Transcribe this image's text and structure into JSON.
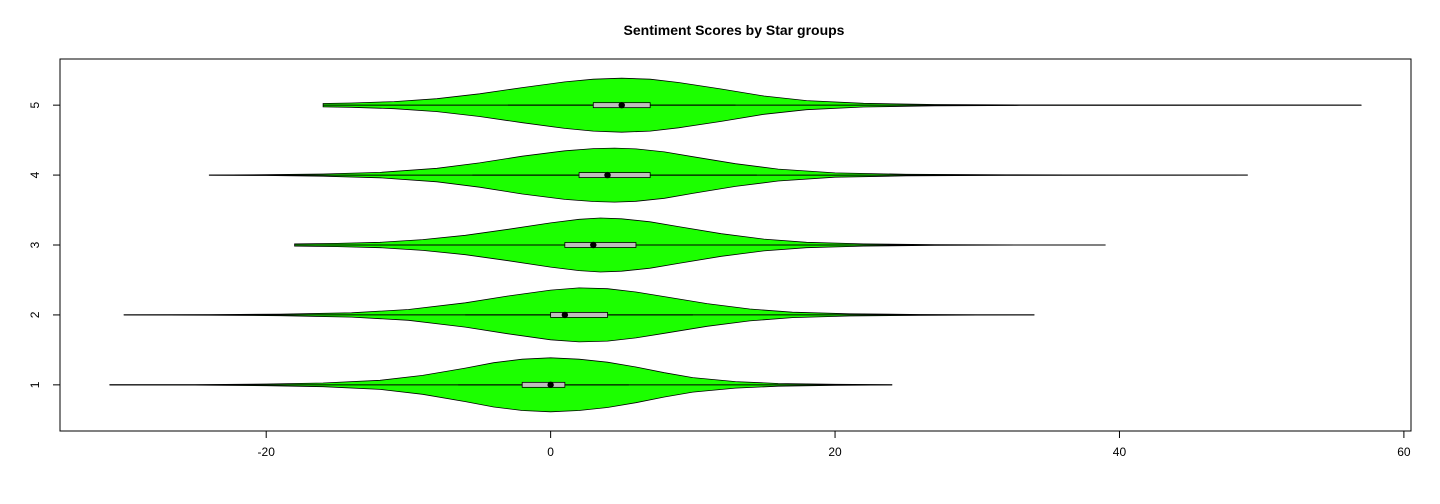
{
  "chart_data": {
    "type": "violin",
    "title": "Sentiment Scores by Star groups",
    "xlabel": "",
    "ylabel": "",
    "orientation": "horizontal",
    "xlim": [
      -34.5,
      60.5
    ],
    "x_ticks": [
      -20,
      0,
      20,
      40,
      60
    ],
    "y_ticks": [
      1,
      2,
      3,
      4,
      5
    ],
    "grid": false,
    "legend": "none",
    "colors": {
      "fill": "#1CFF00",
      "stroke": "#000000",
      "box": "#BEBEBE",
      "median": "#000000",
      "frame": "#000000"
    },
    "groups": [
      {
        "label": "1",
        "min": -31,
        "max": 24,
        "q1": -2,
        "median": 0,
        "q3": 1,
        "whisker_low": -6.5,
        "whisker_high": 5.5,
        "density": [
          [
            -31,
            0.004
          ],
          [
            -25,
            0.01
          ],
          [
            -20,
            0.03
          ],
          [
            -16,
            0.07
          ],
          [
            -12,
            0.17
          ],
          [
            -9,
            0.35
          ],
          [
            -6,
            0.62
          ],
          [
            -4,
            0.82
          ],
          [
            -2,
            0.95
          ],
          [
            0,
            1.0
          ],
          [
            2,
            0.95
          ],
          [
            4,
            0.84
          ],
          [
            6,
            0.66
          ],
          [
            8,
            0.45
          ],
          [
            10,
            0.27
          ],
          [
            13,
            0.12
          ],
          [
            16,
            0.05
          ],
          [
            20,
            0.02
          ],
          [
            24,
            0.004
          ]
        ]
      },
      {
        "label": "2",
        "min": -30,
        "max": 34,
        "q1": 0,
        "median": 1,
        "q3": 4,
        "whisker_low": -6,
        "whisker_high": 10,
        "density": [
          [
            -30,
            0.004
          ],
          [
            -24,
            0.01
          ],
          [
            -19,
            0.03
          ],
          [
            -14,
            0.08
          ],
          [
            -10,
            0.2
          ],
          [
            -6,
            0.45
          ],
          [
            -3,
            0.7
          ],
          [
            0,
            0.92
          ],
          [
            2,
            1.0
          ],
          [
            4,
            0.97
          ],
          [
            6,
            0.85
          ],
          [
            8,
            0.68
          ],
          [
            11,
            0.42
          ],
          [
            14,
            0.22
          ],
          [
            17,
            0.1
          ],
          [
            21,
            0.04
          ],
          [
            26,
            0.015
          ],
          [
            30,
            0.006
          ],
          [
            34,
            0.003
          ]
        ]
      },
      {
        "label": "3",
        "min": -18,
        "max": 39,
        "q1": 1,
        "median": 3,
        "q3": 6,
        "whisker_low": -6.5,
        "whisker_high": 13.5,
        "density": [
          [
            -18,
            0.04
          ],
          [
            -15,
            0.06
          ],
          [
            -12,
            0.1
          ],
          [
            -9,
            0.2
          ],
          [
            -6,
            0.36
          ],
          [
            -3,
            0.58
          ],
          [
            0,
            0.82
          ],
          [
            2,
            0.95
          ],
          [
            3.5,
            1.0
          ],
          [
            5,
            0.97
          ],
          [
            7,
            0.86
          ],
          [
            9,
            0.68
          ],
          [
            12,
            0.42
          ],
          [
            15,
            0.22
          ],
          [
            18,
            0.1
          ],
          [
            22,
            0.04
          ],
          [
            27,
            0.015
          ],
          [
            33,
            0.005
          ],
          [
            39,
            0.002
          ]
        ]
      },
      {
        "label": "4",
        "min": -24,
        "max": 49,
        "q1": 2,
        "median": 4,
        "q3": 7,
        "whisker_low": -5.5,
        "whisker_high": 14.5,
        "density": [
          [
            -24,
            0.004
          ],
          [
            -20,
            0.015
          ],
          [
            -16,
            0.04
          ],
          [
            -12,
            0.1
          ],
          [
            -8,
            0.25
          ],
          [
            -5,
            0.45
          ],
          [
            -2,
            0.7
          ],
          [
            1,
            0.9
          ],
          [
            3,
            0.98
          ],
          [
            4.5,
            1.0
          ],
          [
            6,
            0.97
          ],
          [
            8,
            0.86
          ],
          [
            10,
            0.68
          ],
          [
            13,
            0.42
          ],
          [
            16,
            0.22
          ],
          [
            20,
            0.08
          ],
          [
            25,
            0.03
          ],
          [
            32,
            0.01
          ],
          [
            40,
            0.004
          ],
          [
            49,
            0.002
          ]
        ]
      },
      {
        "label": "5",
        "min": -16,
        "max": 57,
        "q1": 3,
        "median": 5,
        "q3": 7,
        "whisker_low": -3,
        "whisker_high": 13,
        "density": [
          [
            -16,
            0.06
          ],
          [
            -14,
            0.08
          ],
          [
            -11,
            0.13
          ],
          [
            -8,
            0.24
          ],
          [
            -5,
            0.42
          ],
          [
            -2,
            0.65
          ],
          [
            1,
            0.86
          ],
          [
            3,
            0.96
          ],
          [
            5,
            1.0
          ],
          [
            7,
            0.96
          ],
          [
            9,
            0.84
          ],
          [
            12,
            0.6
          ],
          [
            15,
            0.34
          ],
          [
            18,
            0.17
          ],
          [
            22,
            0.07
          ],
          [
            27,
            0.025
          ],
          [
            33,
            0.01
          ],
          [
            42,
            0.004
          ],
          [
            57,
            0.002
          ]
        ]
      }
    ]
  }
}
